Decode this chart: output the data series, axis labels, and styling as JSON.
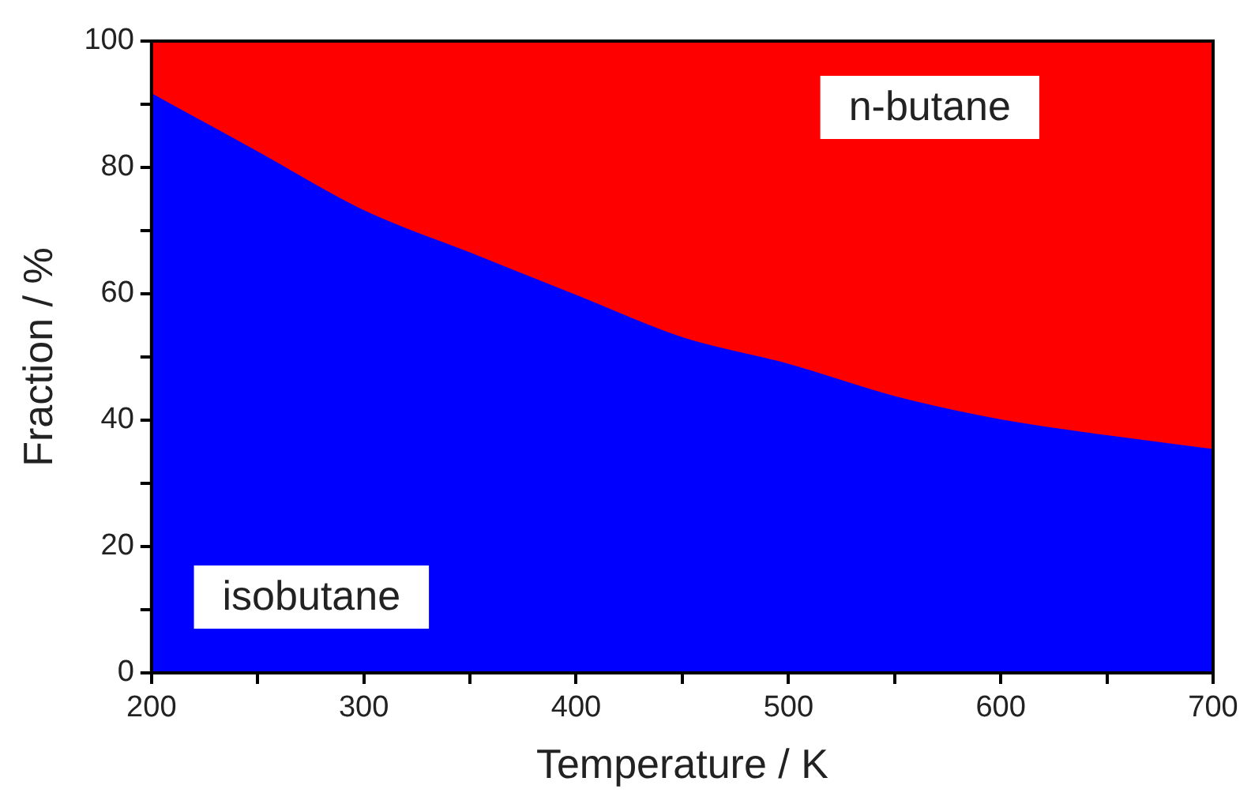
{
  "chart_data": {
    "type": "area",
    "stacked": true,
    "xlabel": "Temperature / K",
    "ylabel": "Fraction / %",
    "x": [
      200,
      250,
      300,
      350,
      400,
      450,
      500,
      550,
      600,
      650,
      700
    ],
    "series": [
      {
        "name": "isobutane",
        "color": "#0000ff",
        "values": [
          91.6,
          82.4,
          73.1,
          66.4,
          59.7,
          53.0,
          48.8,
          43.7,
          40.0,
          37.5,
          35.3
        ]
      },
      {
        "name": "n-butane",
        "color": "#ff0000",
        "values": [
          8.4,
          17.6,
          26.9,
          33.6,
          40.3,
          47.0,
          51.2,
          56.3,
          60.0,
          62.5,
          64.7
        ]
      }
    ],
    "xlim": [
      200,
      700
    ],
    "xticks": [
      200,
      {
        "value": 250,
        "label": null
      },
      300,
      {
        "value": 350,
        "label": null
      },
      400,
      {
        "value": 450,
        "label": null
      },
      500,
      {
        "value": 550,
        "label": null
      },
      600,
      {
        "value": 650,
        "label": null
      },
      700
    ],
    "ylim": [
      0,
      100
    ],
    "yticks": [
      0,
      {
        "value": 10,
        "label": null
      },
      20,
      {
        "value": 30,
        "label": null
      },
      40,
      {
        "value": 50,
        "label": null
      },
      60,
      {
        "value": 70,
        "label": null
      },
      80,
      {
        "value": 90,
        "label": null
      },
      100
    ],
    "legend": false
  }
}
